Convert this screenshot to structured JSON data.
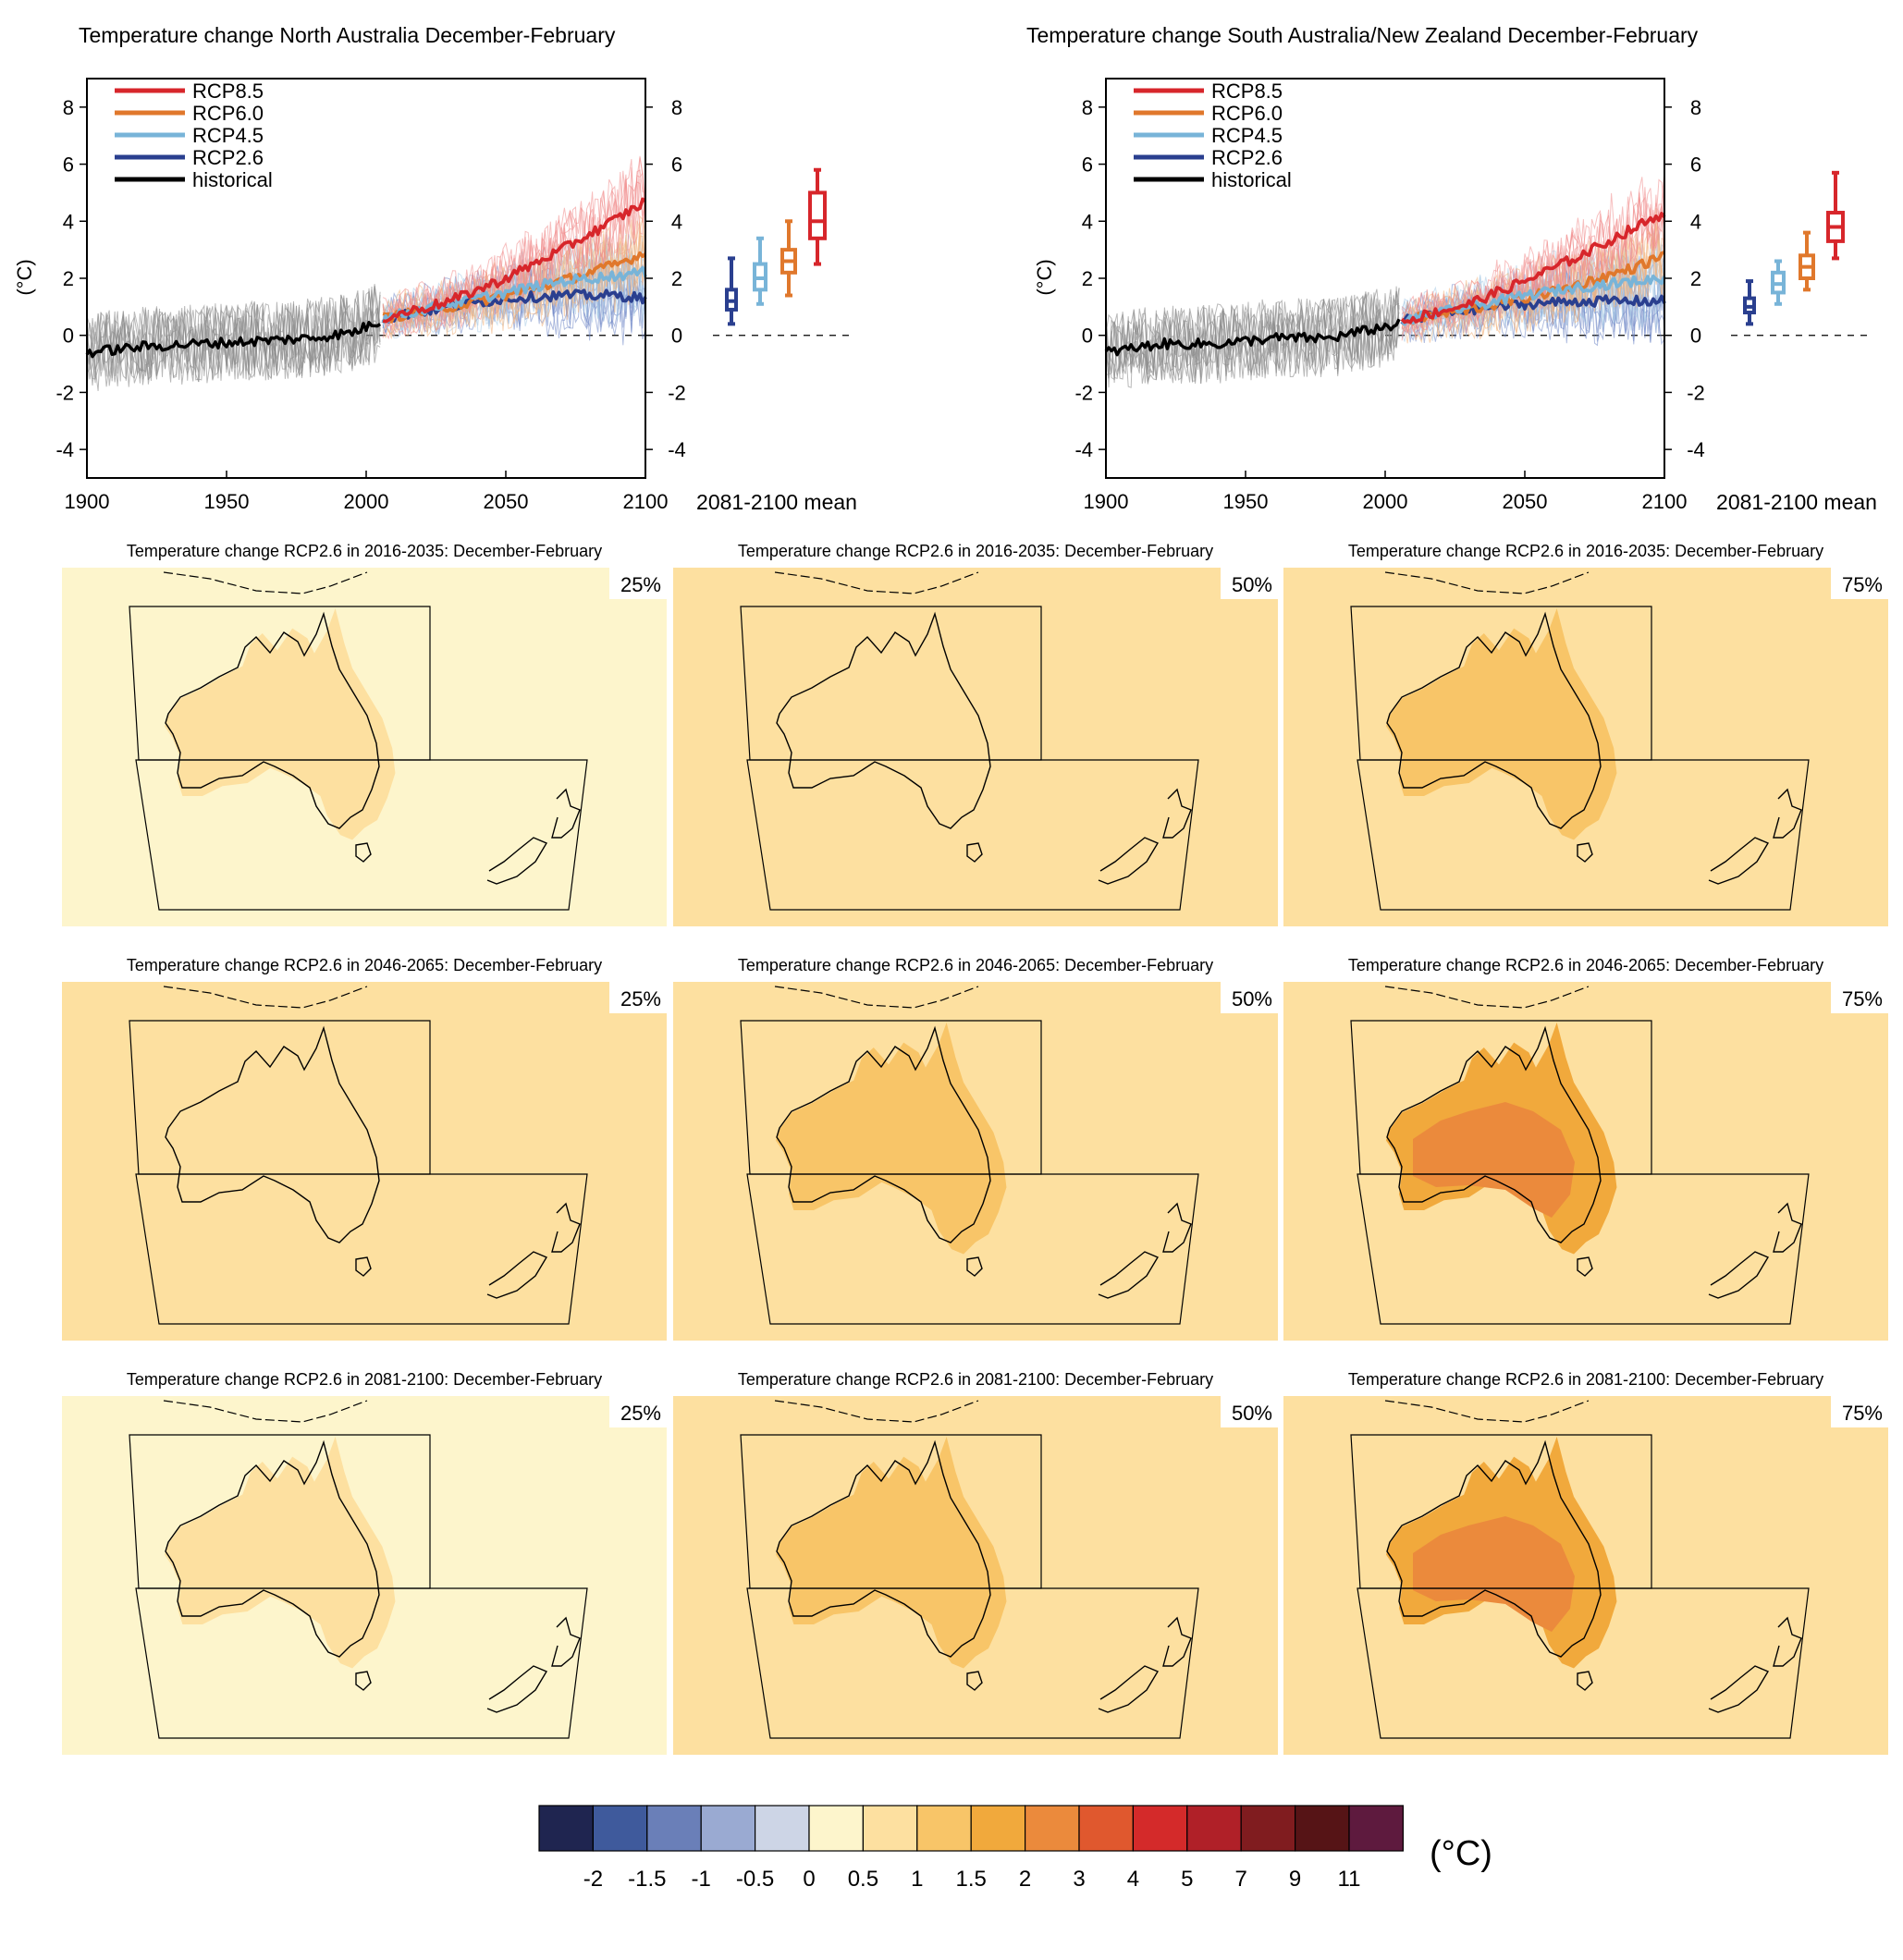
{
  "chart_data": [
    {
      "type": "line",
      "id": "north",
      "title": "Temperature change North Australia December-February",
      "ylabel": "(°C)",
      "xlim": [
        1900,
        2100
      ],
      "ylim": [
        -5,
        9
      ],
      "xticks": [
        "1900",
        "1950",
        "2000",
        "2050",
        "2100"
      ],
      "yticks": [
        "-4",
        "-2",
        "0",
        "2",
        "4",
        "6",
        "8"
      ],
      "legend_position": "top-left",
      "series": [
        {
          "name": "historical",
          "color": "#000000",
          "x": [
            1900,
            1920,
            1940,
            1960,
            1980,
            1995,
            2005
          ],
          "y": [
            -0.6,
            -0.4,
            -0.3,
            -0.2,
            -0.1,
            0.1,
            0.5
          ]
        },
        {
          "name": "RCP2.6",
          "color": "#2a3f8f",
          "x": [
            2006,
            2030,
            2050,
            2070,
            2090,
            2100
          ],
          "y": [
            0.6,
            1.0,
            1.3,
            1.4,
            1.4,
            1.3
          ]
        },
        {
          "name": "RCP4.5",
          "color": "#78b4d8",
          "x": [
            2006,
            2030,
            2050,
            2070,
            2090,
            2100
          ],
          "y": [
            0.6,
            1.1,
            1.5,
            1.9,
            2.1,
            2.2
          ]
        },
        {
          "name": "RCP6.0",
          "color": "#e0782c",
          "x": [
            2006,
            2030,
            2050,
            2070,
            2090,
            2100
          ],
          "y": [
            0.6,
            1.0,
            1.4,
            1.9,
            2.5,
            2.9
          ]
        },
        {
          "name": "RCP8.5",
          "color": "#d7262b",
          "x": [
            2006,
            2030,
            2050,
            2070,
            2090,
            2100
          ],
          "y": [
            0.6,
            1.2,
            2.0,
            3.0,
            4.1,
            4.7
          ]
        }
      ],
      "boxes_label": "2081-2100 mean",
      "boxes": [
        {
          "scenario": "RCP2.6",
          "color": "#2a3f8f",
          "min": 0.4,
          "q1": 0.9,
          "median": 1.2,
          "q3": 1.6,
          "max": 2.7
        },
        {
          "scenario": "RCP4.5",
          "color": "#78b4d8",
          "min": 1.1,
          "q1": 1.6,
          "median": 2.0,
          "q3": 2.5,
          "max": 3.4
        },
        {
          "scenario": "RCP6.0",
          "color": "#e0782c",
          "min": 1.4,
          "q1": 2.2,
          "median": 2.6,
          "q3": 3.0,
          "max": 4.0
        },
        {
          "scenario": "RCP8.5",
          "color": "#d7262b",
          "min": 2.5,
          "q1": 3.4,
          "median": 4.0,
          "q3": 5.0,
          "max": 5.8
        }
      ]
    },
    {
      "type": "line",
      "id": "south",
      "title": "Temperature change South Australia/New Zealand December-February",
      "ylabel": "(°C)",
      "xlim": [
        1900,
        2100
      ],
      "ylim": [
        -5,
        9
      ],
      "xticks": [
        "1900",
        "1950",
        "2000",
        "2050",
        "2100"
      ],
      "yticks": [
        "-4",
        "-2",
        "0",
        "2",
        "4",
        "6",
        "8"
      ],
      "legend_position": "top-left",
      "series": [
        {
          "name": "historical",
          "color": "#000000",
          "x": [
            1900,
            1920,
            1940,
            1960,
            1980,
            1995,
            2005
          ],
          "y": [
            -0.6,
            -0.3,
            -0.3,
            -0.1,
            -0.1,
            0.2,
            0.4
          ]
        },
        {
          "name": "RCP2.6",
          "color": "#2a3f8f",
          "x": [
            2006,
            2030,
            2050,
            2070,
            2090,
            2100
          ],
          "y": [
            0.5,
            0.9,
            1.1,
            1.2,
            1.2,
            1.2
          ]
        },
        {
          "name": "RCP4.5",
          "color": "#78b4d8",
          "x": [
            2006,
            2030,
            2050,
            2070,
            2090,
            2100
          ],
          "y": [
            0.5,
            1.0,
            1.4,
            1.7,
            1.9,
            2.0
          ]
        },
        {
          "name": "RCP6.0",
          "color": "#e0782c",
          "x": [
            2006,
            2030,
            2050,
            2070,
            2090,
            2100
          ],
          "y": [
            0.5,
            0.9,
            1.3,
            1.8,
            2.4,
            2.8
          ]
        },
        {
          "name": "RCP8.5",
          "color": "#d7262b",
          "x": [
            2006,
            2030,
            2050,
            2070,
            2090,
            2100
          ],
          "y": [
            0.5,
            1.1,
            1.9,
            2.8,
            3.8,
            4.3
          ]
        }
      ],
      "boxes_label": "2081-2100 mean",
      "boxes": [
        {
          "scenario": "RCP2.6",
          "color": "#2a3f8f",
          "min": 0.4,
          "q1": 0.8,
          "median": 1.0,
          "q3": 1.3,
          "max": 1.9
        },
        {
          "scenario": "RCP4.5",
          "color": "#78b4d8",
          "min": 1.1,
          "q1": 1.5,
          "median": 1.8,
          "q3": 2.2,
          "max": 2.6
        },
        {
          "scenario": "RCP6.0",
          "color": "#e0782c",
          "min": 1.6,
          "q1": 2.0,
          "median": 2.4,
          "q3": 2.8,
          "max": 3.6
        },
        {
          "scenario": "RCP8.5",
          "color": "#d7262b",
          "min": 2.7,
          "q1": 3.3,
          "median": 3.8,
          "q3": 4.3,
          "max": 5.7
        }
      ]
    },
    {
      "type": "heatmap",
      "id": "maps",
      "rows": [
        {
          "title": "Temperature change RCP2.6 in 2016-2035: December-February"
        },
        {
          "title": "Temperature change RCP2.6 in 2046-2065: December-February"
        },
        {
          "title": "Temperature change RCP2.6 in 2081-2100: December-February"
        }
      ],
      "percentiles": [
        "25%",
        "50%",
        "75%"
      ],
      "panels": [
        {
          "ocean": 0.25,
          "land": 0.75
        },
        {
          "ocean": 0.75,
          "land": 0.75
        },
        {
          "ocean": 0.75,
          "land": 1.25
        },
        {
          "ocean": 0.75,
          "land": 0.75
        },
        {
          "ocean": 0.75,
          "land": 1.25
        },
        {
          "ocean": 0.75,
          "land": 1.75
        },
        {
          "ocean": 0.25,
          "land": 0.75
        },
        {
          "ocean": 0.75,
          "land": 1.25
        },
        {
          "ocean": 0.75,
          "land": 1.75
        }
      ]
    }
  ],
  "colorbar": {
    "unit": "(°C)",
    "colors": [
      "#1f2550",
      "#3f5a9c",
      "#6a7fb8",
      "#9aaad2",
      "#cdd5e6",
      "#fdf5cc",
      "#fde0a0",
      "#f8c568",
      "#f1a93c",
      "#eb8a3c",
      "#e0582e",
      "#d42a2a",
      "#b02028",
      "#801c1f",
      "#561416",
      "#5e1a3e"
    ],
    "labels": [
      "-2",
      "-1.5",
      "-1",
      "-0.5",
      "0",
      "0.5",
      "1",
      "1.5",
      "2",
      "3",
      "4",
      "5",
      "7",
      "9",
      "11"
    ]
  }
}
